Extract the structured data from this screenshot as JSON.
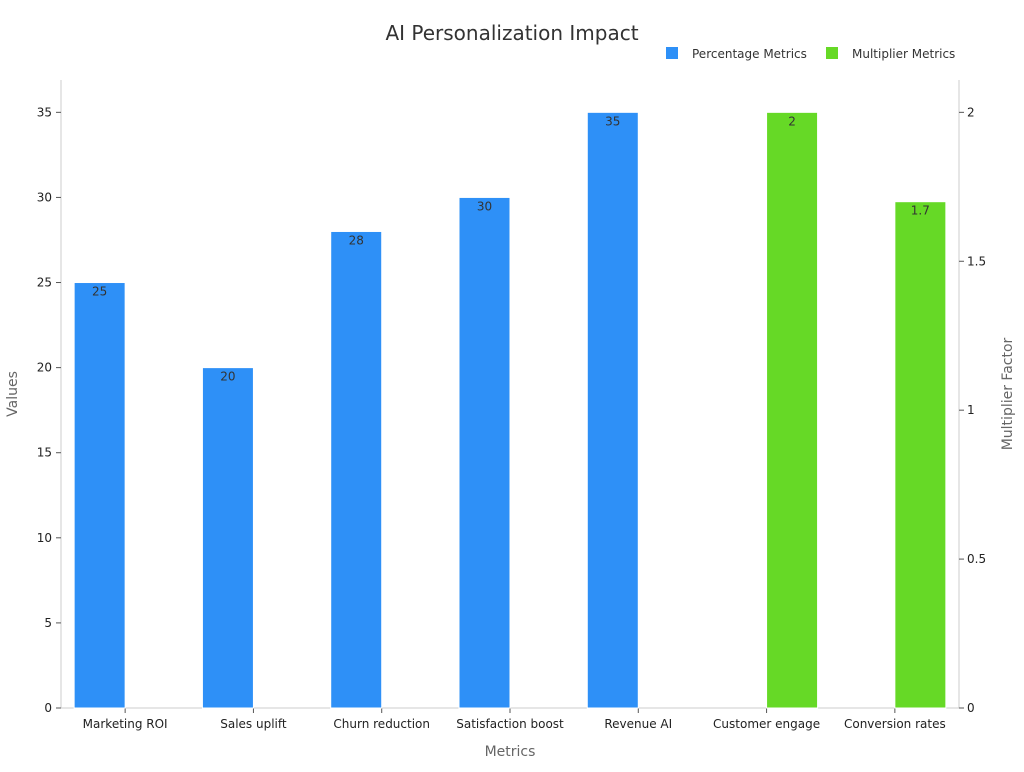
{
  "chart_data": {
    "type": "bar",
    "title": "AI Personalization Impact",
    "xlabel": "Metrics",
    "ylabel": "Values",
    "y2label": "Multiplier Factor",
    "categories": [
      "Marketing ROI",
      "Sales uplift",
      "Churn reduction",
      "Satisfaction boost",
      "Revenue AI",
      "Customer engage",
      "Conversion rates"
    ],
    "ylim": [
      0,
      36.9
    ],
    "y2lim": [
      0,
      2.1086
    ],
    "yticks": [
      0,
      5,
      10,
      15,
      20,
      25,
      30,
      35
    ],
    "y2ticks": [
      "0",
      "0.5",
      "1",
      "1.5",
      "2"
    ],
    "legend_position": "top-right",
    "grid": false,
    "series": [
      {
        "name": "Percentage Metrics",
        "axis": "left",
        "color": "#2e90f7",
        "values": [
          25,
          20,
          28,
          30,
          35,
          null,
          null
        ],
        "labels": [
          "25",
          "20",
          "28",
          "30",
          "35",
          "",
          ""
        ]
      },
      {
        "name": "Multiplier Metrics",
        "axis": "right",
        "color": "#66d926",
        "values": [
          null,
          null,
          null,
          null,
          null,
          2,
          1.7
        ],
        "labels": [
          "",
          "",
          "",
          "",
          "",
          "2",
          "1.7"
        ]
      }
    ]
  }
}
